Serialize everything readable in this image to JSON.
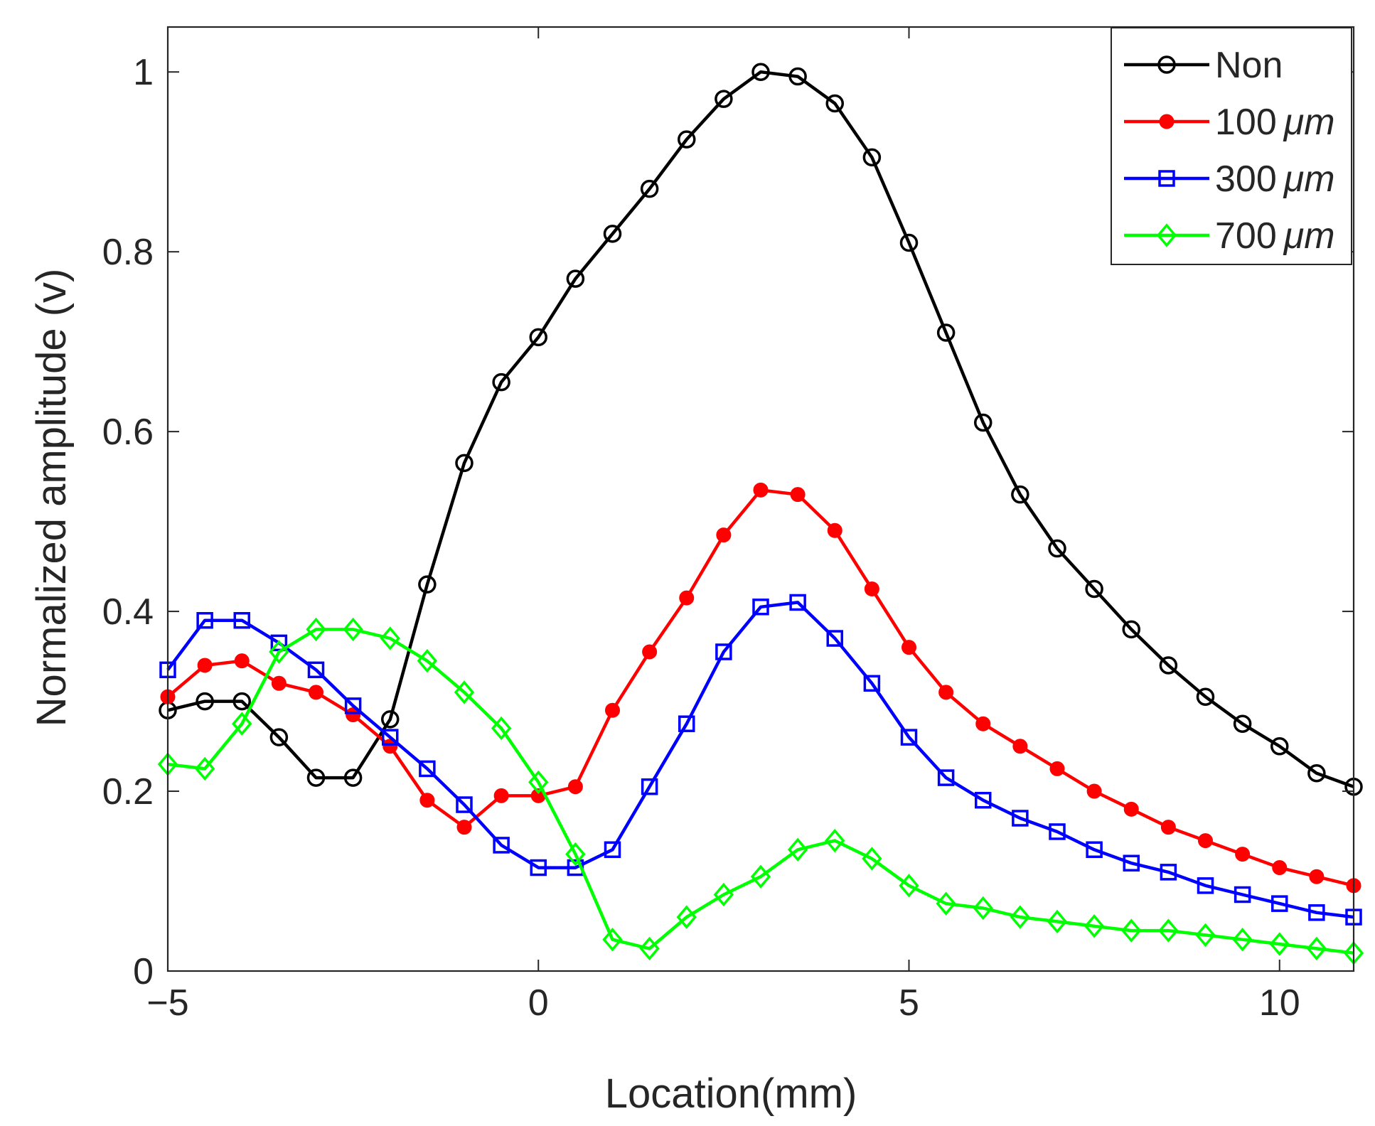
{
  "chart_data": {
    "type": "line",
    "title": "",
    "xlabel": "Location(mm)",
    "ylabel": "Normalized amplitude (v)",
    "xlim": [
      -5,
      11
    ],
    "ylim": [
      0,
      1.05
    ],
    "xticks": [
      -5,
      0,
      5,
      10
    ],
    "xtick_labels": [
      "−5",
      "0",
      "5",
      "10"
    ],
    "yticks": [
      0,
      0.2,
      0.4,
      0.6,
      0.8,
      1
    ],
    "ytick_labels": [
      "0",
      "0.2",
      "0.4",
      "0.6",
      "0.8",
      "1"
    ],
    "grid": false,
    "legend_position": "top-right",
    "x": [
      -5,
      -4.5,
      -4,
      -3.5,
      -3,
      -2.5,
      -2,
      -1.5,
      -1,
      -0.5,
      0,
      0.5,
      1,
      1.5,
      2,
      2.5,
      3,
      3.5,
      4,
      4.5,
      5,
      5.5,
      6,
      6.5,
      7,
      7.5,
      8,
      8.5,
      9,
      9.5,
      10,
      10.5,
      11
    ],
    "series": [
      {
        "name": "Non",
        "unit_label": "",
        "color": "#000000",
        "marker": "open-circle",
        "values": [
          0.29,
          0.3,
          0.3,
          0.26,
          0.215,
          0.215,
          0.28,
          0.43,
          0.565,
          0.655,
          0.705,
          0.77,
          0.82,
          0.87,
          0.925,
          0.97,
          1.0,
          0.995,
          0.965,
          0.905,
          0.81,
          0.71,
          0.61,
          0.53,
          0.47,
          0.425,
          0.38,
          0.34,
          0.305,
          0.275,
          0.25,
          0.22,
          0.205
        ]
      },
      {
        "name": "100",
        "unit_label": "μm",
        "color": "#ff0000",
        "marker": "filled-circle",
        "values": [
          0.305,
          0.34,
          0.345,
          0.32,
          0.31,
          0.285,
          0.25,
          0.19,
          0.16,
          0.195,
          0.195,
          0.205,
          0.29,
          0.355,
          0.415,
          0.485,
          0.535,
          0.53,
          0.49,
          0.425,
          0.36,
          0.31,
          0.275,
          0.25,
          0.225,
          0.2,
          0.18,
          0.16,
          0.145,
          0.13,
          0.115,
          0.105,
          0.095
        ]
      },
      {
        "name": "300",
        "unit_label": "μm",
        "color": "#0000ff",
        "marker": "open-square",
        "values": [
          0.335,
          0.39,
          0.39,
          0.365,
          0.335,
          0.295,
          0.26,
          0.225,
          0.185,
          0.14,
          0.115,
          0.115,
          0.135,
          0.205,
          0.275,
          0.355,
          0.405,
          0.41,
          0.37,
          0.32,
          0.26,
          0.215,
          0.19,
          0.17,
          0.155,
          0.135,
          0.12,
          0.11,
          0.095,
          0.085,
          0.075,
          0.065,
          0.06
        ]
      },
      {
        "name": "700",
        "unit_label": "μm",
        "color": "#00ff00",
        "marker": "open-diamond",
        "values": [
          0.23,
          0.225,
          0.275,
          0.355,
          0.38,
          0.38,
          0.37,
          0.345,
          0.31,
          0.27,
          0.21,
          0.13,
          0.035,
          0.025,
          0.06,
          0.085,
          0.105,
          0.135,
          0.145,
          0.125,
          0.095,
          0.075,
          0.07,
          0.06,
          0.055,
          0.05,
          0.045,
          0.045,
          0.04,
          0.035,
          0.03,
          0.025,
          0.02
        ]
      }
    ]
  }
}
